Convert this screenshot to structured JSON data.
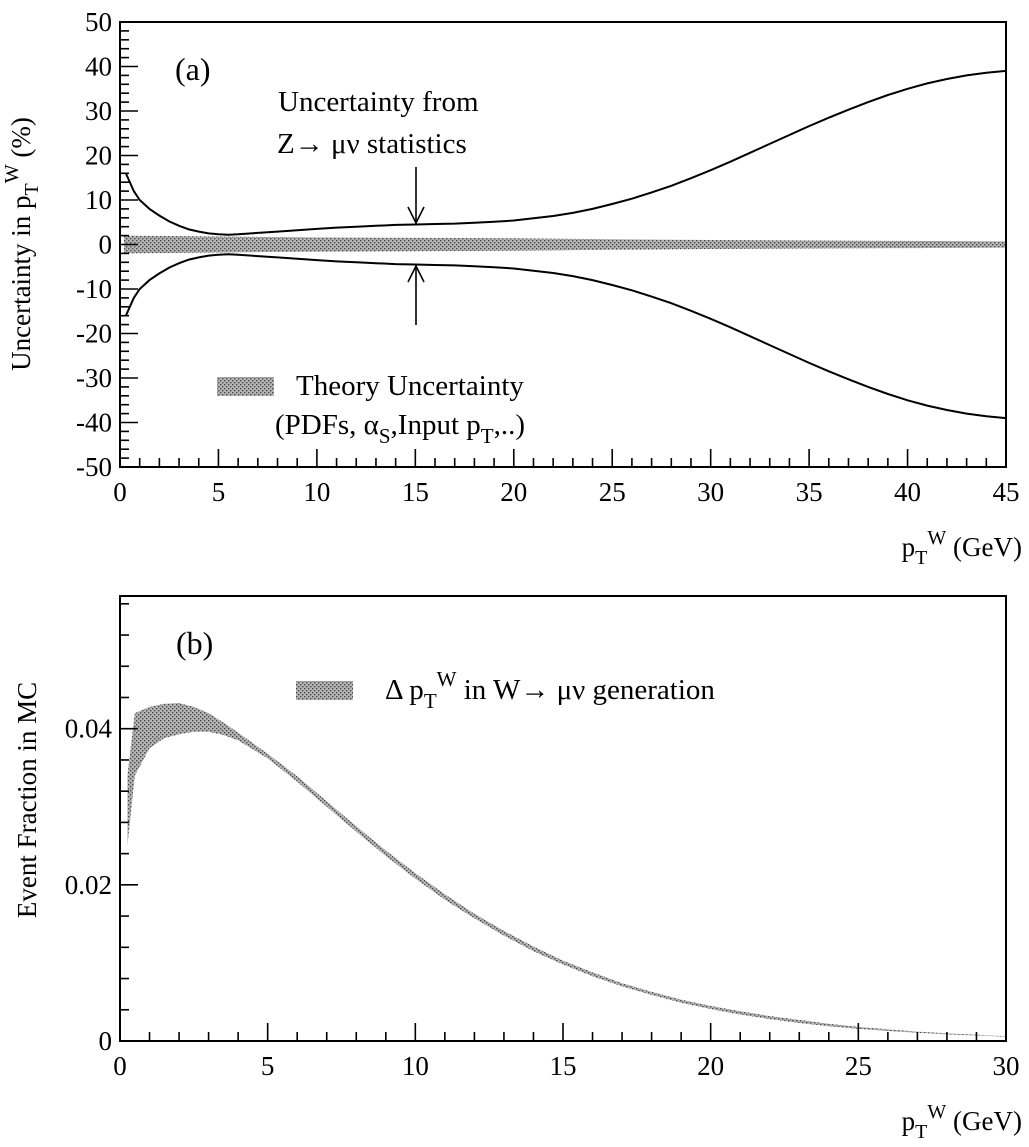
{
  "chart_data": [
    {
      "type": "area",
      "panel": "a",
      "panel_tag": "(a)",
      "title": "",
      "xlabel": {
        "main": "p",
        "sub": "T",
        "sup": "W",
        "unit": " (GeV)"
      },
      "ylabel": {
        "pre": "Uncertainty in p",
        "sub": "T",
        "sup": "W",
        "post": " (%)"
      },
      "xlim": [
        0,
        45
      ],
      "ylim": [
        -50,
        50
      ],
      "x_ticks": [
        "0",
        "5",
        "10",
        "15",
        "20",
        "25",
        "30",
        "35",
        "40",
        "45"
      ],
      "y_ticks": [
        "-50",
        "-40",
        "-30",
        "-20",
        "-10",
        "0",
        "10",
        "20",
        "30",
        "40",
        "50"
      ],
      "annotation": {
        "line1": "Uncertainty from",
        "line2": "Z→ μν statistics",
        "arrow_x": 15
      },
      "legend": {
        "line1": "Theory Uncertainty",
        "line2_pre": "(PDFs, α",
        "line2_sub1": "S",
        "line2_mid": ",Input p",
        "line2_sub2": "T",
        "line2_post": ",..)"
      },
      "series": [
        {
          "name": "Uncertainty from Z→ μν statistics",
          "style": "line",
          "symmetric": true,
          "x": [
            0.3,
            0.7,
            1,
            1.5,
            2,
            2.5,
            3,
            3.5,
            4,
            4.5,
            5,
            5.5,
            6,
            7,
            8,
            9,
            10,
            11,
            12,
            13,
            14,
            15,
            16,
            17,
            18,
            19,
            20,
            21,
            22,
            23,
            24,
            25,
            26,
            27,
            28,
            29,
            30,
            31,
            32,
            33,
            34,
            35,
            36,
            37,
            38,
            39,
            40,
            41,
            42,
            43,
            44,
            45
          ],
          "y": [
            16,
            12,
            10,
            8,
            6.5,
            5.2,
            4.2,
            3.4,
            2.9,
            2.5,
            2.3,
            2.2,
            2.3,
            2.6,
            2.9,
            3.2,
            3.5,
            3.8,
            4.0,
            4.2,
            4.4,
            4.5,
            4.6,
            4.7,
            4.9,
            5.1,
            5.4,
            5.9,
            6.4,
            7.1,
            8.0,
            9.1,
            10.3,
            11.7,
            13.2,
            14.9,
            16.7,
            18.6,
            20.6,
            22.6,
            24.6,
            26.6,
            28.5,
            30.3,
            32.0,
            33.6,
            35.0,
            36.2,
            37.2,
            38.0,
            38.6,
            39.0
          ]
        },
        {
          "name": "Theory Uncertainty",
          "style": "band",
          "x": [
            0.2,
            5,
            10,
            15,
            20,
            25,
            30,
            35,
            40,
            45
          ],
          "y_low": [
            -2.0,
            -1.8,
            -1.6,
            -1.5,
            -1.4,
            -1.2,
            -1.0,
            -0.9,
            -0.8,
            -0.7
          ],
          "y_high": [
            2.0,
            1.8,
            1.6,
            1.5,
            1.4,
            1.2,
            1.0,
            0.9,
            0.8,
            0.7
          ]
        }
      ]
    },
    {
      "type": "area",
      "panel": "b",
      "panel_tag": "(b)",
      "title": "",
      "xlabel": {
        "main": "p",
        "sub": "T",
        "sup": "W",
        "unit": " (GeV)"
      },
      "ylabel": {
        "text": "Event Fraction in MC"
      },
      "xlim": [
        0,
        30
      ],
      "ylim": [
        0,
        0.057
      ],
      "x_ticks": [
        "0",
        "5",
        "10",
        "15",
        "20",
        "25",
        "30"
      ],
      "y_ticks": [
        "0",
        "0.02",
        "0.04"
      ],
      "y_tick_values": [
        0,
        0.02,
        0.04
      ],
      "legend": {
        "pre": "Δ p",
        "sub": "T",
        "sup": "W",
        "post": " in W→ μν generation"
      },
      "series": [
        {
          "name": "Δ pTW in W→ μν generation",
          "style": "band",
          "x": [
            0.25,
            0.5,
            1.0,
            1.5,
            2.0,
            2.5,
            3.0,
            3.5,
            4.0,
            5,
            6,
            7,
            8,
            9,
            10,
            11,
            12,
            13,
            14,
            15,
            16,
            17,
            18,
            19,
            20,
            21,
            22,
            23,
            24,
            25,
            26,
            27,
            28,
            29,
            30
          ],
          "y_low": [
            0.025,
            0.034,
            0.0375,
            0.0388,
            0.0393,
            0.0396,
            0.0396,
            0.0392,
            0.0385,
            0.0362,
            0.0332,
            0.03,
            0.0268,
            0.0237,
            0.0208,
            0.0181,
            0.0157,
            0.0135,
            0.0115,
            0.0098,
            0.0083,
            0.007,
            0.0059,
            0.0049,
            0.0041,
            0.0034,
            0.0028,
            0.0023,
            0.0019,
            0.00155,
            0.0013,
            0.00105,
            0.00085,
            0.0007,
            0.00055
          ],
          "y_high": [
            0.034,
            0.042,
            0.0428,
            0.0432,
            0.0433,
            0.0428,
            0.042,
            0.0408,
            0.0395,
            0.0368,
            0.0339,
            0.0307,
            0.0275,
            0.0244,
            0.0215,
            0.0188,
            0.0163,
            0.0141,
            0.0121,
            0.0103,
            0.0088,
            0.0074,
            0.0063,
            0.0053,
            0.0045,
            0.0038,
            0.0032,
            0.0027,
            0.0022,
            0.0018,
            0.0015,
            0.0012,
            0.001,
            0.0008,
            0.0006
          ]
        }
      ]
    }
  ]
}
